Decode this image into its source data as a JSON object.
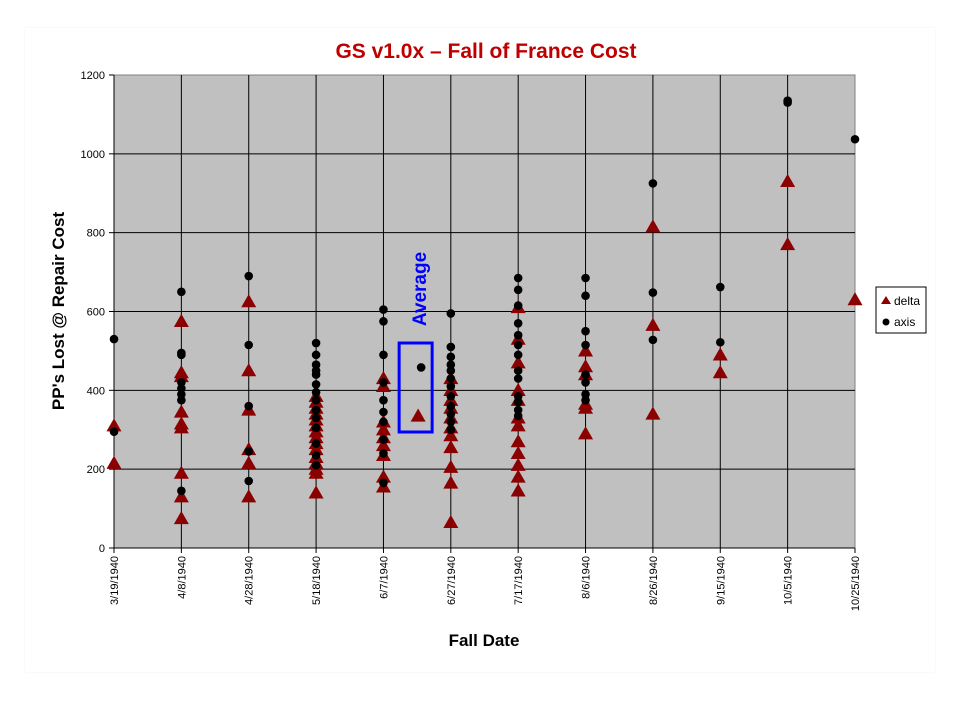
{
  "chart_data": {
    "type": "scatter",
    "title": "GS v1.0x – Fall of France Cost",
    "xlabel": "Fall Date",
    "ylabel": "PP's Lost @ Repair Cost",
    "ylim": [
      0,
      1200
    ],
    "yticks": [
      0,
      200,
      400,
      600,
      800,
      1000,
      1200
    ],
    "grid": true,
    "legend_position": "right",
    "categories": [
      "3/19/1940",
      "4/8/1940",
      "4/28/1940",
      "5/18/1940",
      "6/7/1940",
      "6/27/1940",
      "7/17/1940",
      "8/6/1940",
      "8/26/1940",
      "9/15/1940",
      "10/5/1940",
      "10/25/1940"
    ],
    "series": [
      {
        "name": "delta",
        "color": "#8b0000",
        "marker": "triangle",
        "points": [
          {
            "x": "3/19/1940",
            "y": 310
          },
          {
            "x": "3/19/1940",
            "y": 215
          },
          {
            "x": "4/8/1940",
            "y": 575
          },
          {
            "x": "4/8/1940",
            "y": 445
          },
          {
            "x": "4/8/1940",
            "y": 435
          },
          {
            "x": "4/8/1940",
            "y": 345
          },
          {
            "x": "4/8/1940",
            "y": 315
          },
          {
            "x": "4/8/1940",
            "y": 305
          },
          {
            "x": "4/8/1940",
            "y": 190
          },
          {
            "x": "4/8/1940",
            "y": 130
          },
          {
            "x": "4/8/1940",
            "y": 75
          },
          {
            "x": "4/28/1940",
            "y": 625
          },
          {
            "x": "4/28/1940",
            "y": 450
          },
          {
            "x": "4/28/1940",
            "y": 350
          },
          {
            "x": "4/28/1940",
            "y": 250
          },
          {
            "x": "4/28/1940",
            "y": 215
          },
          {
            "x": "4/28/1940",
            "y": 130
          },
          {
            "x": "5/18/1940",
            "y": 385
          },
          {
            "x": "5/18/1940",
            "y": 370
          },
          {
            "x": "5/18/1940",
            "y": 355
          },
          {
            "x": "5/18/1940",
            "y": 340
          },
          {
            "x": "5/18/1940",
            "y": 325
          },
          {
            "x": "5/18/1940",
            "y": 310
          },
          {
            "x": "5/18/1940",
            "y": 295
          },
          {
            "x": "5/18/1940",
            "y": 280
          },
          {
            "x": "5/18/1940",
            "y": 265
          },
          {
            "x": "5/18/1940",
            "y": 250
          },
          {
            "x": "5/18/1940",
            "y": 230
          },
          {
            "x": "5/18/1940",
            "y": 215
          },
          {
            "x": "5/18/1940",
            "y": 200
          },
          {
            "x": "5/18/1940",
            "y": 190
          },
          {
            "x": "5/18/1940",
            "y": 140
          },
          {
            "x": "6/7/1940",
            "y": 430
          },
          {
            "x": "6/7/1940",
            "y": 410
          },
          {
            "x": "6/7/1940",
            "y": 320
          },
          {
            "x": "6/7/1940",
            "y": 300
          },
          {
            "x": "6/7/1940",
            "y": 280
          },
          {
            "x": "6/7/1940",
            "y": 260
          },
          {
            "x": "6/7/1940",
            "y": 235
          },
          {
            "x": "6/7/1940",
            "y": 180
          },
          {
            "x": "6/7/1940",
            "y": 155
          },
          {
            "x": "6/27/1940",
            "y": 430
          },
          {
            "x": "6/27/1940",
            "y": 400
          },
          {
            "x": "6/27/1940",
            "y": 375
          },
          {
            "x": "6/27/1940",
            "y": 355
          },
          {
            "x": "6/27/1940",
            "y": 330
          },
          {
            "x": "6/27/1940",
            "y": 305
          },
          {
            "x": "6/27/1940",
            "y": 285
          },
          {
            "x": "6/27/1940",
            "y": 255
          },
          {
            "x": "6/27/1940",
            "y": 205
          },
          {
            "x": "6/27/1940",
            "y": 165
          },
          {
            "x": "6/27/1940",
            "y": 65
          },
          {
            "x": "7/17/1940",
            "y": 610
          },
          {
            "x": "7/17/1940",
            "y": 530
          },
          {
            "x": "7/17/1940",
            "y": 470
          },
          {
            "x": "7/17/1940",
            "y": 400
          },
          {
            "x": "7/17/1940",
            "y": 375
          },
          {
            "x": "7/17/1940",
            "y": 330
          },
          {
            "x": "7/17/1940",
            "y": 310
          },
          {
            "x": "7/17/1940",
            "y": 270
          },
          {
            "x": "7/17/1940",
            "y": 240
          },
          {
            "x": "7/17/1940",
            "y": 210
          },
          {
            "x": "7/17/1940",
            "y": 180
          },
          {
            "x": "7/17/1940",
            "y": 145
          },
          {
            "x": "8/6/1940",
            "y": 500
          },
          {
            "x": "8/6/1940",
            "y": 460
          },
          {
            "x": "8/6/1940",
            "y": 440
          },
          {
            "x": "8/6/1940",
            "y": 365
          },
          {
            "x": "8/6/1940",
            "y": 355
          },
          {
            "x": "8/6/1940",
            "y": 290
          },
          {
            "x": "8/26/1940",
            "y": 815
          },
          {
            "x": "8/26/1940",
            "y": 565
          },
          {
            "x": "8/26/1940",
            "y": 340
          },
          {
            "x": "9/15/1940",
            "y": 490
          },
          {
            "x": "9/15/1940",
            "y": 445
          },
          {
            "x": "10/5/1940",
            "y": 930
          },
          {
            "x": "10/5/1940",
            "y": 770
          },
          {
            "x": "10/25/1940",
            "y": 630
          }
        ]
      },
      {
        "name": "axis",
        "color": "#000000",
        "marker": "circle",
        "points": [
          {
            "x": "3/19/1940",
            "y": 530
          },
          {
            "x": "3/19/1940",
            "y": 295
          },
          {
            "x": "4/8/1940",
            "y": 650
          },
          {
            "x": "4/8/1940",
            "y": 495
          },
          {
            "x": "4/8/1940",
            "y": 490
          },
          {
            "x": "4/8/1940",
            "y": 420
          },
          {
            "x": "4/8/1940",
            "y": 405
          },
          {
            "x": "4/8/1940",
            "y": 390
          },
          {
            "x": "4/8/1940",
            "y": 375
          },
          {
            "x": "4/8/1940",
            "y": 145
          },
          {
            "x": "4/28/1940",
            "y": 690
          },
          {
            "x": "4/28/1940",
            "y": 515
          },
          {
            "x": "4/28/1940",
            "y": 360
          },
          {
            "x": "4/28/1940",
            "y": 245
          },
          {
            "x": "4/28/1940",
            "y": 170
          },
          {
            "x": "5/18/1940",
            "y": 520
          },
          {
            "x": "5/18/1940",
            "y": 490
          },
          {
            "x": "5/18/1940",
            "y": 465
          },
          {
            "x": "5/18/1940",
            "y": 450
          },
          {
            "x": "5/18/1940",
            "y": 440
          },
          {
            "x": "5/18/1940",
            "y": 415
          },
          {
            "x": "5/18/1940",
            "y": 395
          },
          {
            "x": "5/18/1940",
            "y": 375
          },
          {
            "x": "5/18/1940",
            "y": 350
          },
          {
            "x": "5/18/1940",
            "y": 330
          },
          {
            "x": "5/18/1940",
            "y": 305
          },
          {
            "x": "5/18/1940",
            "y": 265
          },
          {
            "x": "5/18/1940",
            "y": 235
          },
          {
            "x": "5/18/1940",
            "y": 210
          },
          {
            "x": "6/7/1940",
            "y": 605
          },
          {
            "x": "6/7/1940",
            "y": 575
          },
          {
            "x": "6/7/1940",
            "y": 490
          },
          {
            "x": "6/7/1940",
            "y": 420
          },
          {
            "x": "6/7/1940",
            "y": 375
          },
          {
            "x": "6/7/1940",
            "y": 345
          },
          {
            "x": "6/7/1940",
            "y": 320
          },
          {
            "x": "6/7/1940",
            "y": 275
          },
          {
            "x": "6/7/1940",
            "y": 240
          },
          {
            "x": "6/7/1940",
            "y": 165
          },
          {
            "x": "6/27/1940",
            "y": 595
          },
          {
            "x": "6/27/1940",
            "y": 510
          },
          {
            "x": "6/27/1940",
            "y": 485
          },
          {
            "x": "6/27/1940",
            "y": 465
          },
          {
            "x": "6/27/1940",
            "y": 450
          },
          {
            "x": "6/27/1940",
            "y": 430
          },
          {
            "x": "6/27/1940",
            "y": 410
          },
          {
            "x": "6/27/1940",
            "y": 385
          },
          {
            "x": "6/27/1940",
            "y": 360
          },
          {
            "x": "6/27/1940",
            "y": 340
          },
          {
            "x": "6/27/1940",
            "y": 320
          },
          {
            "x": "6/27/1940",
            "y": 300
          },
          {
            "x": "7/17/1940",
            "y": 685
          },
          {
            "x": "7/17/1940",
            "y": 655
          },
          {
            "x": "7/17/1940",
            "y": 615
          },
          {
            "x": "7/17/1940",
            "y": 570
          },
          {
            "x": "7/17/1940",
            "y": 540
          },
          {
            "x": "7/17/1940",
            "y": 515
          },
          {
            "x": "7/17/1940",
            "y": 490
          },
          {
            "x": "7/17/1940",
            "y": 450
          },
          {
            "x": "7/17/1940",
            "y": 430
          },
          {
            "x": "7/17/1940",
            "y": 385
          },
          {
            "x": "7/17/1940",
            "y": 370
          },
          {
            "x": "7/17/1940",
            "y": 350
          },
          {
            "x": "7/17/1940",
            "y": 335
          },
          {
            "x": "8/6/1940",
            "y": 685
          },
          {
            "x": "8/6/1940",
            "y": 640
          },
          {
            "x": "8/6/1940",
            "y": 550
          },
          {
            "x": "8/6/1940",
            "y": 515
          },
          {
            "x": "8/6/1940",
            "y": 440
          },
          {
            "x": "8/6/1940",
            "y": 420
          },
          {
            "x": "8/6/1940",
            "y": 390
          },
          {
            "x": "8/6/1940",
            "y": 375
          },
          {
            "x": "8/26/1940",
            "y": 925
          },
          {
            "x": "8/26/1940",
            "y": 648
          },
          {
            "x": "8/26/1940",
            "y": 528
          },
          {
            "x": "9/15/1940",
            "y": 662
          },
          {
            "x": "9/15/1940",
            "y": 522
          },
          {
            "x": "10/5/1940",
            "y": 1135
          },
          {
            "x": "10/5/1940",
            "y": 1130
          },
          {
            "x": "10/25/1940",
            "y": 1037
          }
        ]
      }
    ],
    "average": {
      "label": "Average",
      "axis": 458,
      "delta": 335
    }
  }
}
